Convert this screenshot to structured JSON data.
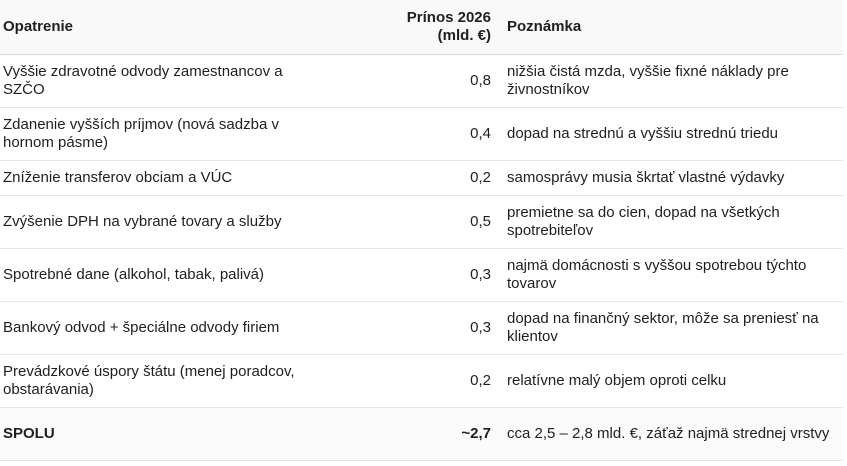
{
  "table": {
    "headers": {
      "measure": "Opatrenie",
      "yield_line1": "Prínos 2026",
      "yield_line2": "(mld. €)",
      "note": "Poznámka"
    },
    "rows": [
      {
        "measure": "Vyššie zdravotné odvody zamestnancov a SZČO",
        "yield": "0,8",
        "note": "nižšia čistá mzda, vyššie fixné náklady pre živnostníkov"
      },
      {
        "measure": "Zdanenie vyšších príjmov (nová sadzba v hornom pásme)",
        "yield": "0,4",
        "note": "dopad na strednú a vyššiu strednú triedu"
      },
      {
        "measure": "Zníženie transferov obciam a VÚC",
        "yield": "0,2",
        "note": "samosprávy musia škrtať vlastné výdavky"
      },
      {
        "measure": "Zvýšenie DPH na vybrané tovary a služby",
        "yield": "0,5",
        "note": "premietne sa do cien, dopad na všetkých spotrebiteľov"
      },
      {
        "measure": "Spotrebné dane (alkohol, tabak, palivá)",
        "yield": "0,3",
        "note": "najmä domácnosti s vyššou spotrebou týchto tovarov"
      },
      {
        "measure": "Bankový odvod + špeciálne odvody firiem",
        "yield": "0,3",
        "note": "dopad na finančný sektor, môže sa preniesť na klientov"
      },
      {
        "measure": "Prevádzkové úspory štátu (menej poradcov, obstarávania)",
        "yield": "0,2",
        "note": "relatívne malý objem oproti celku"
      }
    ],
    "total": {
      "measure": "SPOLU",
      "yield": "~2,7",
      "note": "cca 2,5 – 2,8 mld. €, záťaž najmä strednej vrstvy"
    }
  }
}
